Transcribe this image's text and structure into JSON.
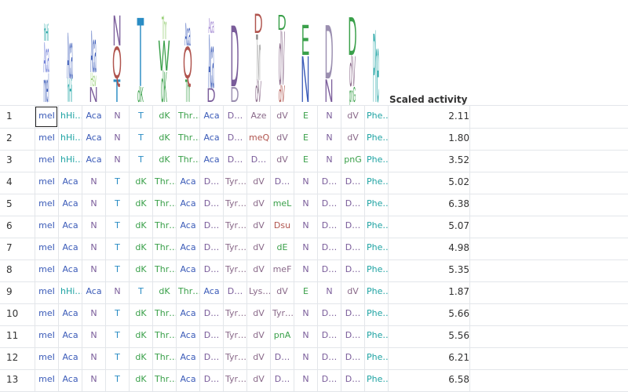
{
  "logo": {
    "columns": [
      {
        "letters": [
          "meI",
          "Aca",
          "hHi"
        ],
        "colors": [
          "#3b5bb8",
          "#6b7bd6",
          "#1fa3a3"
        ]
      },
      {
        "letters": [
          "hHi",
          "Aca"
        ],
        "colors": [
          "#22a6a6",
          "#3b5bb8"
        ]
      },
      {
        "letters": [
          "N",
          "Hsv",
          "Aca"
        ],
        "colors": [
          "#7a5c9a",
          "#9ad07a",
          "#3b5bb8"
        ]
      },
      {
        "letters": [
          "T",
          "Q",
          "N"
        ],
        "colors": [
          "#2a8cc4",
          "#b0544e",
          "#7a5c9a"
        ]
      },
      {
        "letters": [
          "dK",
          "T"
        ],
        "colors": [
          "#3aa04a",
          "#2a8cc4"
        ]
      },
      {
        "letters": [
          "dK",
          "W",
          "Thr"
        ],
        "colors": [
          "#3aa04a",
          "#3aa04a",
          "#9ad07a"
        ]
      },
      {
        "letters": [
          "Thr",
          "Q",
          "Aca"
        ],
        "colors": [
          "#3aa04a",
          "#b0544e",
          "#3b5bb8"
        ]
      },
      {
        "letters": [
          "D",
          "Aca",
          "Aca"
        ],
        "colors": [
          "#7a5c9a",
          "#3b5bb8",
          "#9b7fcf"
        ]
      },
      {
        "letters": [
          "D",
          "D"
        ],
        "colors": [
          "#9b8fb0",
          "#7a5c9a"
        ]
      },
      {
        "letters": [
          "dV",
          "Tyr",
          "D"
        ],
        "colors": [
          "#8a6a8a",
          "#8a8a8a",
          "#b0544e"
        ]
      },
      {
        "letters": [
          "dV",
          "dV",
          "D"
        ],
        "colors": [
          "#b0544e",
          "#8a6a8a",
          "#3aa04a"
        ]
      },
      {
        "letters": [
          "N",
          "E"
        ],
        "colors": [
          "#3b5bb8",
          "#3aa04a"
        ]
      },
      {
        "letters": [
          "N",
          "D"
        ],
        "colors": [
          "#7a5c9a",
          "#9b8fb0"
        ]
      },
      {
        "letters": [
          "pnG",
          "dV",
          "D"
        ],
        "colors": [
          "#3aa04a",
          "#8a6a8a",
          "#3aa04a"
        ]
      },
      {
        "letters": [
          "Phe"
        ],
        "colors": [
          "#1fa3a3"
        ]
      }
    ]
  },
  "table": {
    "activity_header": "Scaled activity",
    "rows": [
      {
        "num": "1",
        "cells": [
          "meI",
          "hHi…",
          "Aca",
          "N",
          "T",
          "dK",
          "Thr…",
          "Aca",
          "D…",
          "Aze",
          "dV",
          "E",
          "N",
          "dV",
          "Phe…"
        ],
        "activity": "2.11"
      },
      {
        "num": "2",
        "cells": [
          "meI",
          "hHi…",
          "Aca",
          "N",
          "T",
          "dK",
          "Thr…",
          "Aca",
          "D…",
          "meQ",
          "dV",
          "E",
          "N",
          "dV",
          "Phe…"
        ],
        "activity": "1.80"
      },
      {
        "num": "3",
        "cells": [
          "meI",
          "hHi…",
          "Aca",
          "N",
          "T",
          "dK",
          "Thr…",
          "Aca",
          "D…",
          "D…",
          "dV",
          "E",
          "N",
          "pnG",
          "Phe…"
        ],
        "activity": "3.52"
      },
      {
        "num": "4",
        "cells": [
          "meI",
          "Aca",
          "N",
          "T",
          "dK",
          "Thr…",
          "Aca",
          "D…",
          "Tyr…",
          "dV",
          "D…",
          "N",
          "D…",
          "D…",
          "Phe…"
        ],
        "activity": "5.02"
      },
      {
        "num": "5",
        "cells": [
          "meI",
          "Aca",
          "N",
          "T",
          "dK",
          "Thr…",
          "Aca",
          "D…",
          "Tyr…",
          "dV",
          "meL",
          "N",
          "D…",
          "D…",
          "Phe…"
        ],
        "activity": "6.38"
      },
      {
        "num": "6",
        "cells": [
          "meI",
          "Aca",
          "N",
          "T",
          "dK",
          "Thr…",
          "Aca",
          "D…",
          "Tyr…",
          "dV",
          "Dsu",
          "N",
          "D…",
          "D…",
          "Phe…"
        ],
        "activity": "5.07"
      },
      {
        "num": "7",
        "cells": [
          "meI",
          "Aca",
          "N",
          "T",
          "dK",
          "Thr…",
          "Aca",
          "D…",
          "Tyr…",
          "dV",
          "dE",
          "N",
          "D…",
          "D…",
          "Phe…"
        ],
        "activity": "4.98"
      },
      {
        "num": "8",
        "cells": [
          "meI",
          "Aca",
          "N",
          "T",
          "dK",
          "Thr…",
          "Aca",
          "D…",
          "Tyr…",
          "dV",
          "meF",
          "N",
          "D…",
          "D…",
          "Phe…"
        ],
        "activity": "5.35"
      },
      {
        "num": "9",
        "cells": [
          "meI",
          "hHi…",
          "Aca",
          "N",
          "T",
          "dK",
          "Thr…",
          "Aca",
          "D…",
          "Lys…",
          "dV",
          "E",
          "N",
          "dV",
          "Phe…"
        ],
        "activity": "1.87"
      },
      {
        "num": "10",
        "cells": [
          "meI",
          "Aca",
          "N",
          "T",
          "dK",
          "Thr…",
          "Aca",
          "D…",
          "Tyr…",
          "dV",
          "Tyr…",
          "N",
          "D…",
          "D…",
          "Phe…"
        ],
        "activity": "5.66"
      },
      {
        "num": "11",
        "cells": [
          "meI",
          "Aca",
          "N",
          "T",
          "dK",
          "Thr…",
          "Aca",
          "D…",
          "Tyr…",
          "dV",
          "pnA",
          "N",
          "D…",
          "D…",
          "Phe…"
        ],
        "activity": "5.56"
      },
      {
        "num": "12",
        "cells": [
          "meI",
          "Aca",
          "N",
          "T",
          "dK",
          "Thr…",
          "Aca",
          "D…",
          "Tyr…",
          "dV",
          "D…",
          "N",
          "D…",
          "D…",
          "Phe…"
        ],
        "activity": "6.21"
      },
      {
        "num": "13",
        "cells": [
          "meI",
          "Aca",
          "N",
          "T",
          "dK",
          "Thr…",
          "Aca",
          "D…",
          "Tyr…",
          "dV",
          "D…",
          "N",
          "D…",
          "D…",
          "Phe…"
        ],
        "activity": "6.58"
      }
    ]
  },
  "colors": {
    "meI": "#3b5bb8",
    "hHi…": "#1fa3a3",
    "Aca": "#3b5bb8",
    "N": "#7a5c9a",
    "T": "#2a8cc4",
    "dK": "#3aa04a",
    "Thr…": "#3aa04a",
    "D…": "#7a5c9a",
    "Aze": "#8a6a8a",
    "meQ": "#b0544e",
    "dV": "#8a6a8a",
    "E": "#3aa04a",
    "pnG": "#3aa04a",
    "Phe…": "#1fa3a3",
    "Tyr…": "#8a6a8a",
    "meL": "#3aa04a",
    "Dsu": "#b0544e",
    "dE": "#3aa04a",
    "meF": "#8a6a8a",
    "Lys…": "#8a6a8a",
    "pnA": "#3aa04a",
    "grid": "#e3e6ea",
    "text": "#333333"
  }
}
